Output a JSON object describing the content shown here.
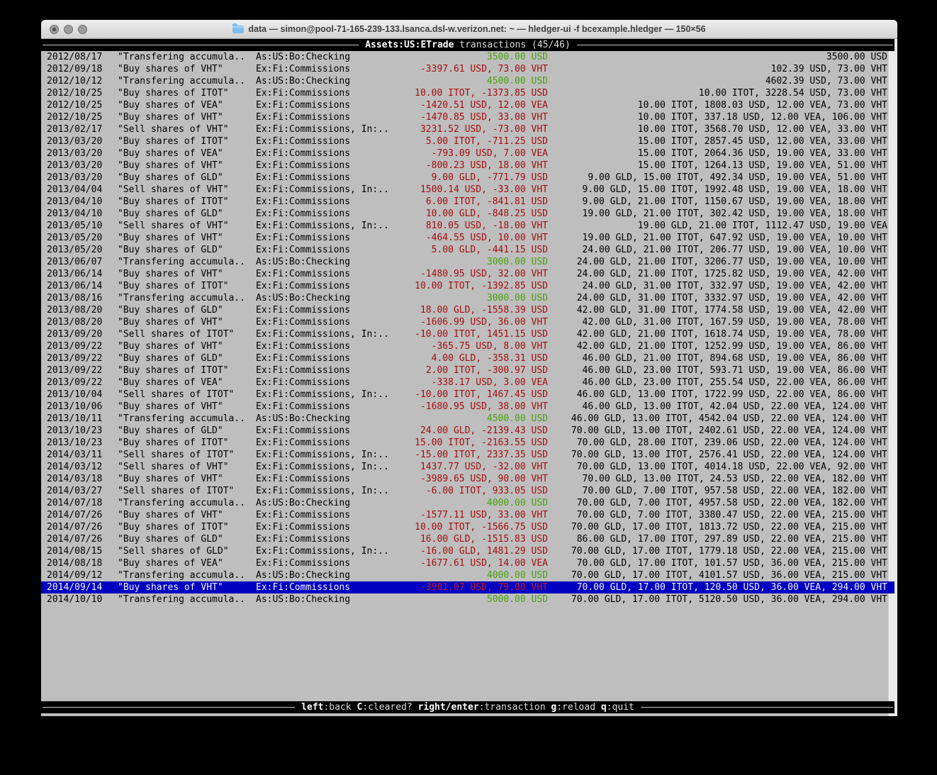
{
  "window": {
    "title": "data — simon@pool-71-165-239-133.lsanca.dsl-w.verizon.net: ~ — hledger-ui -f bcexample.hledger — 150×56"
  },
  "header": {
    "account": "Assets:US:ETrade",
    "view_label": "transactions",
    "position": "(45/46)"
  },
  "footer": {
    "keys": [
      {
        "key": "left",
        "action": ":back"
      },
      {
        "key": "C",
        "action": ":cleared?"
      },
      {
        "key": "right/enter",
        "action": ":transaction"
      },
      {
        "key": "g",
        "action": ":reload"
      },
      {
        "key": "q",
        "action": ":quit"
      }
    ]
  },
  "colors": {
    "negative_amount": "#a30d0d",
    "positive_amount": "#47a30a",
    "selection_background": "#0000c2",
    "terminal_background": "#bebebe",
    "bar_background": "#000000"
  },
  "transactions": [
    {
      "date": "2012/08/17",
      "description": "\"Transfering accumula..",
      "account": "As:US:Bo:Checking",
      "change": "3500.00 USD",
      "sign": "pos",
      "balance": "3500.00 USD",
      "selected": false
    },
    {
      "date": "2012/09/18",
      "description": "\"Buy shares of VHT\"",
      "account": "Ex:Fi:Commissions",
      "change": "-3397.61 USD, 73.00 VHT",
      "sign": "neg",
      "balance": "102.39 USD, 73.00 VHT",
      "selected": false
    },
    {
      "date": "2012/10/12",
      "description": "\"Transfering accumula..",
      "account": "As:US:Bo:Checking",
      "change": "4500.00 USD",
      "sign": "pos",
      "balance": "4602.39 USD, 73.00 VHT",
      "selected": false
    },
    {
      "date": "2012/10/25",
      "description": "\"Buy shares of ITOT\"",
      "account": "Ex:Fi:Commissions",
      "change": "10.00 ITOT, -1373.85 USD",
      "sign": "neg",
      "balance": "10.00 ITOT, 3228.54 USD, 73.00 VHT",
      "selected": false
    },
    {
      "date": "2012/10/25",
      "description": "\"Buy shares of VEA\"",
      "account": "Ex:Fi:Commissions",
      "change": "-1420.51 USD, 12.00 VEA",
      "sign": "neg",
      "balance": "10.00 ITOT, 1808.03 USD, 12.00 VEA, 73.00 VHT",
      "selected": false
    },
    {
      "date": "2012/10/25",
      "description": "\"Buy shares of VHT\"",
      "account": "Ex:Fi:Commissions",
      "change": "-1470.85 USD, 33.00 VHT",
      "sign": "neg",
      "balance": "10.00 ITOT, 337.18 USD, 12.00 VEA, 106.00 VHT",
      "selected": false
    },
    {
      "date": "2013/02/17",
      "description": "\"Sell shares of VHT\"",
      "account": "Ex:Fi:Commissions, In:..",
      "change": "3231.52 USD, -73.00 VHT",
      "sign": "neg",
      "balance": "10.00 ITOT, 3568.70 USD, 12.00 VEA, 33.00 VHT",
      "selected": false
    },
    {
      "date": "2013/03/20",
      "description": "\"Buy shares of ITOT\"",
      "account": "Ex:Fi:Commissions",
      "change": "5.00 ITOT, -711.25 USD",
      "sign": "neg",
      "balance": "15.00 ITOT, 2857.45 USD, 12.00 VEA, 33.00 VHT",
      "selected": false
    },
    {
      "date": "2013/03/20",
      "description": "\"Buy shares of VEA\"",
      "account": "Ex:Fi:Commissions",
      "change": "-793.09 USD, 7.00 VEA",
      "sign": "neg",
      "balance": "15.00 ITOT, 2064.36 USD, 19.00 VEA, 33.00 VHT",
      "selected": false
    },
    {
      "date": "2013/03/20",
      "description": "\"Buy shares of VHT\"",
      "account": "Ex:Fi:Commissions",
      "change": "-800.23 USD, 18.00 VHT",
      "sign": "neg",
      "balance": "15.00 ITOT, 1264.13 USD, 19.00 VEA, 51.00 VHT",
      "selected": false
    },
    {
      "date": "2013/03/20",
      "description": "\"Buy shares of GLD\"",
      "account": "Ex:Fi:Commissions",
      "change": "9.00 GLD, -771.79 USD",
      "sign": "neg",
      "balance": "9.00 GLD, 15.00 ITOT, 492.34 USD, 19.00 VEA, 51.00 VHT",
      "selected": false
    },
    {
      "date": "2013/04/04",
      "description": "\"Sell shares of VHT\"",
      "account": "Ex:Fi:Commissions, In:..",
      "change": "1500.14 USD, -33.00 VHT",
      "sign": "neg",
      "balance": "9.00 GLD, 15.00 ITOT, 1992.48 USD, 19.00 VEA, 18.00 VHT",
      "selected": false
    },
    {
      "date": "2013/04/10",
      "description": "\"Buy shares of ITOT\"",
      "account": "Ex:Fi:Commissions",
      "change": "6.00 ITOT, -841.81 USD",
      "sign": "neg",
      "balance": "9.00 GLD, 21.00 ITOT, 1150.67 USD, 19.00 VEA, 18.00 VHT",
      "selected": false
    },
    {
      "date": "2013/04/10",
      "description": "\"Buy shares of GLD\"",
      "account": "Ex:Fi:Commissions",
      "change": "10.00 GLD, -848.25 USD",
      "sign": "neg",
      "balance": "19.00 GLD, 21.00 ITOT, 302.42 USD, 19.00 VEA, 18.00 VHT",
      "selected": false
    },
    {
      "date": "2013/05/10",
      "description": "\"Sell shares of VHT\"",
      "account": "Ex:Fi:Commissions, In:..",
      "change": "810.05 USD, -18.00 VHT",
      "sign": "neg",
      "balance": "19.00 GLD, 21.00 ITOT, 1112.47 USD, 19.00 VEA",
      "selected": false
    },
    {
      "date": "2013/05/20",
      "description": "\"Buy shares of VHT\"",
      "account": "Ex:Fi:Commissions",
      "change": "-464.55 USD, 10.00 VHT",
      "sign": "neg",
      "balance": "19.00 GLD, 21.00 ITOT, 647.92 USD, 19.00 VEA, 10.00 VHT",
      "selected": false
    },
    {
      "date": "2013/05/20",
      "description": "\"Buy shares of GLD\"",
      "account": "Ex:Fi:Commissions",
      "change": "5.00 GLD, -441.15 USD",
      "sign": "neg",
      "balance": "24.00 GLD, 21.00 ITOT, 206.77 USD, 19.00 VEA, 10.00 VHT",
      "selected": false
    },
    {
      "date": "2013/06/07",
      "description": "\"Transfering accumula..",
      "account": "As:US:Bo:Checking",
      "change": "3000.00 USD",
      "sign": "pos",
      "balance": "24.00 GLD, 21.00 ITOT, 3206.77 USD, 19.00 VEA, 10.00 VHT",
      "selected": false
    },
    {
      "date": "2013/06/14",
      "description": "\"Buy shares of VHT\"",
      "account": "Ex:Fi:Commissions",
      "change": "-1480.95 USD, 32.00 VHT",
      "sign": "neg",
      "balance": "24.00 GLD, 21.00 ITOT, 1725.82 USD, 19.00 VEA, 42.00 VHT",
      "selected": false
    },
    {
      "date": "2013/06/14",
      "description": "\"Buy shares of ITOT\"",
      "account": "Ex:Fi:Commissions",
      "change": "10.00 ITOT, -1392.85 USD",
      "sign": "neg",
      "balance": "24.00 GLD, 31.00 ITOT, 332.97 USD, 19.00 VEA, 42.00 VHT",
      "selected": false
    },
    {
      "date": "2013/08/16",
      "description": "\"Transfering accumula..",
      "account": "As:US:Bo:Checking",
      "change": "3000.00 USD",
      "sign": "pos",
      "balance": "24.00 GLD, 31.00 ITOT, 3332.97 USD, 19.00 VEA, 42.00 VHT",
      "selected": false
    },
    {
      "date": "2013/08/20",
      "description": "\"Buy shares of GLD\"",
      "account": "Ex:Fi:Commissions",
      "change": "18.00 GLD, -1558.39 USD",
      "sign": "neg",
      "balance": "42.00 GLD, 31.00 ITOT, 1774.58 USD, 19.00 VEA, 42.00 VHT",
      "selected": false
    },
    {
      "date": "2013/08/20",
      "description": "\"Buy shares of VHT\"",
      "account": "Ex:Fi:Commissions",
      "change": "-1606.99 USD, 36.00 VHT",
      "sign": "neg",
      "balance": "42.00 GLD, 31.00 ITOT, 167.59 USD, 19.00 VEA, 78.00 VHT",
      "selected": false
    },
    {
      "date": "2013/09/20",
      "description": "\"Sell shares of ITOT\"",
      "account": "Ex:Fi:Commissions, In:..",
      "change": "-10.00 ITOT, 1451.15 USD",
      "sign": "neg",
      "balance": "42.00 GLD, 21.00 ITOT, 1618.74 USD, 19.00 VEA, 78.00 VHT",
      "selected": false
    },
    {
      "date": "2013/09/22",
      "description": "\"Buy shares of VHT\"",
      "account": "Ex:Fi:Commissions",
      "change": "-365.75 USD, 8.00 VHT",
      "sign": "neg",
      "balance": "42.00 GLD, 21.00 ITOT, 1252.99 USD, 19.00 VEA, 86.00 VHT",
      "selected": false
    },
    {
      "date": "2013/09/22",
      "description": "\"Buy shares of GLD\"",
      "account": "Ex:Fi:Commissions",
      "change": "4.00 GLD, -358.31 USD",
      "sign": "neg",
      "balance": "46.00 GLD, 21.00 ITOT, 894.68 USD, 19.00 VEA, 86.00 VHT",
      "selected": false
    },
    {
      "date": "2013/09/22",
      "description": "\"Buy shares of ITOT\"",
      "account": "Ex:Fi:Commissions",
      "change": "2.00 ITOT, -300.97 USD",
      "sign": "neg",
      "balance": "46.00 GLD, 23.00 ITOT, 593.71 USD, 19.00 VEA, 86.00 VHT",
      "selected": false
    },
    {
      "date": "2013/09/22",
      "description": "\"Buy shares of VEA\"",
      "account": "Ex:Fi:Commissions",
      "change": "-338.17 USD, 3.00 VEA",
      "sign": "neg",
      "balance": "46.00 GLD, 23.00 ITOT, 255.54 USD, 22.00 VEA, 86.00 VHT",
      "selected": false
    },
    {
      "date": "2013/10/04",
      "description": "\"Sell shares of ITOT\"",
      "account": "Ex:Fi:Commissions, In:..",
      "change": "-10.00 ITOT, 1467.45 USD",
      "sign": "neg",
      "balance": "46.00 GLD, 13.00 ITOT, 1722.99 USD, 22.00 VEA, 86.00 VHT",
      "selected": false
    },
    {
      "date": "2013/10/06",
      "description": "\"Buy shares of VHT\"",
      "account": "Ex:Fi:Commissions",
      "change": "-1680.95 USD, 38.00 VHT",
      "sign": "neg",
      "balance": "46.00 GLD, 13.00 ITOT, 42.04 USD, 22.00 VEA, 124.00 VHT",
      "selected": false
    },
    {
      "date": "2013/10/11",
      "description": "\"Transfering accumula..",
      "account": "As:US:Bo:Checking",
      "change": "4500.00 USD",
      "sign": "pos",
      "balance": "46.00 GLD, 13.00 ITOT, 4542.04 USD, 22.00 VEA, 124.00 VHT",
      "selected": false
    },
    {
      "date": "2013/10/23",
      "description": "\"Buy shares of GLD\"",
      "account": "Ex:Fi:Commissions",
      "change": "24.00 GLD, -2139.43 USD",
      "sign": "neg",
      "balance": "70.00 GLD, 13.00 ITOT, 2402.61 USD, 22.00 VEA, 124.00 VHT",
      "selected": false
    },
    {
      "date": "2013/10/23",
      "description": "\"Buy shares of ITOT\"",
      "account": "Ex:Fi:Commissions",
      "change": "15.00 ITOT, -2163.55 USD",
      "sign": "neg",
      "balance": "70.00 GLD, 28.00 ITOT, 239.06 USD, 22.00 VEA, 124.00 VHT",
      "selected": false
    },
    {
      "date": "2014/03/11",
      "description": "\"Sell shares of ITOT\"",
      "account": "Ex:Fi:Commissions, In:..",
      "change": "-15.00 ITOT, 2337.35 USD",
      "sign": "neg",
      "balance": "70.00 GLD, 13.00 ITOT, 2576.41 USD, 22.00 VEA, 124.00 VHT",
      "selected": false
    },
    {
      "date": "2014/03/12",
      "description": "\"Sell shares of VHT\"",
      "account": "Ex:Fi:Commissions, In:..",
      "change": "1437.77 USD, -32.00 VHT",
      "sign": "neg",
      "balance": "70.00 GLD, 13.00 ITOT, 4014.18 USD, 22.00 VEA, 92.00 VHT",
      "selected": false
    },
    {
      "date": "2014/03/18",
      "description": "\"Buy shares of VHT\"",
      "account": "Ex:Fi:Commissions",
      "change": "-3989.65 USD, 90.00 VHT",
      "sign": "neg",
      "balance": "70.00 GLD, 13.00 ITOT, 24.53 USD, 22.00 VEA, 182.00 VHT",
      "selected": false
    },
    {
      "date": "2014/03/27",
      "description": "\"Sell shares of ITOT\"",
      "account": "Ex:Fi:Commissions, In:..",
      "change": "-6.00 ITOT, 933.05 USD",
      "sign": "neg",
      "balance": "70.00 GLD, 7.00 ITOT, 957.58 USD, 22.00 VEA, 182.00 VHT",
      "selected": false
    },
    {
      "date": "2014/07/18",
      "description": "\"Transfering accumula..",
      "account": "As:US:Bo:Checking",
      "change": "4000.00 USD",
      "sign": "pos",
      "balance": "70.00 GLD, 7.00 ITOT, 4957.58 USD, 22.00 VEA, 182.00 VHT",
      "selected": false
    },
    {
      "date": "2014/07/26",
      "description": "\"Buy shares of VHT\"",
      "account": "Ex:Fi:Commissions",
      "change": "-1577.11 USD, 33.00 VHT",
      "sign": "neg",
      "balance": "70.00 GLD, 7.00 ITOT, 3380.47 USD, 22.00 VEA, 215.00 VHT",
      "selected": false
    },
    {
      "date": "2014/07/26",
      "description": "\"Buy shares of ITOT\"",
      "account": "Ex:Fi:Commissions",
      "change": "10.00 ITOT, -1566.75 USD",
      "sign": "neg",
      "balance": "70.00 GLD, 17.00 ITOT, 1813.72 USD, 22.00 VEA, 215.00 VHT",
      "selected": false
    },
    {
      "date": "2014/07/26",
      "description": "\"Buy shares of GLD\"",
      "account": "Ex:Fi:Commissions",
      "change": "16.00 GLD, -1515.83 USD",
      "sign": "neg",
      "balance": "86.00 GLD, 17.00 ITOT, 297.89 USD, 22.00 VEA, 215.00 VHT",
      "selected": false
    },
    {
      "date": "2014/08/15",
      "description": "\"Sell shares of GLD\"",
      "account": "Ex:Fi:Commissions, In:..",
      "change": "-16.00 GLD, 1481.29 USD",
      "sign": "neg",
      "balance": "70.00 GLD, 17.00 ITOT, 1779.18 USD, 22.00 VEA, 215.00 VHT",
      "selected": false
    },
    {
      "date": "2014/08/18",
      "description": "\"Buy shares of VEA\"",
      "account": "Ex:Fi:Commissions",
      "change": "-1677.61 USD, 14.00 VEA",
      "sign": "neg",
      "balance": "70.00 GLD, 17.00 ITOT, 101.57 USD, 36.00 VEA, 215.00 VHT",
      "selected": false
    },
    {
      "date": "2014/09/12",
      "description": "\"Transfering accumula..",
      "account": "As:US:Bo:Checking",
      "change": "4000.00 USD",
      "sign": "pos",
      "balance": "70.00 GLD, 17.00 ITOT, 4101.57 USD, 36.00 VEA, 215.00 VHT",
      "selected": false
    },
    {
      "date": "2014/09/14",
      "description": "\"Buy shares of VHT\"",
      "account": "Ex:Fi:Commissions",
      "change": "-3981.07 USD, 79.00 VHT",
      "sign": "neg",
      "balance": "70.00 GLD, 17.00 ITOT, 120.50 USD, 36.00 VEA, 294.00 VHT",
      "selected": true
    },
    {
      "date": "2014/10/10",
      "description": "\"Transfering accumula..",
      "account": "As:US:Bo:Checking",
      "change": "5000.00 USD",
      "sign": "pos",
      "balance": "70.00 GLD, 17.00 ITOT, 5120.50 USD, 36.00 VEA, 294.00 VHT",
      "selected": false
    }
  ]
}
